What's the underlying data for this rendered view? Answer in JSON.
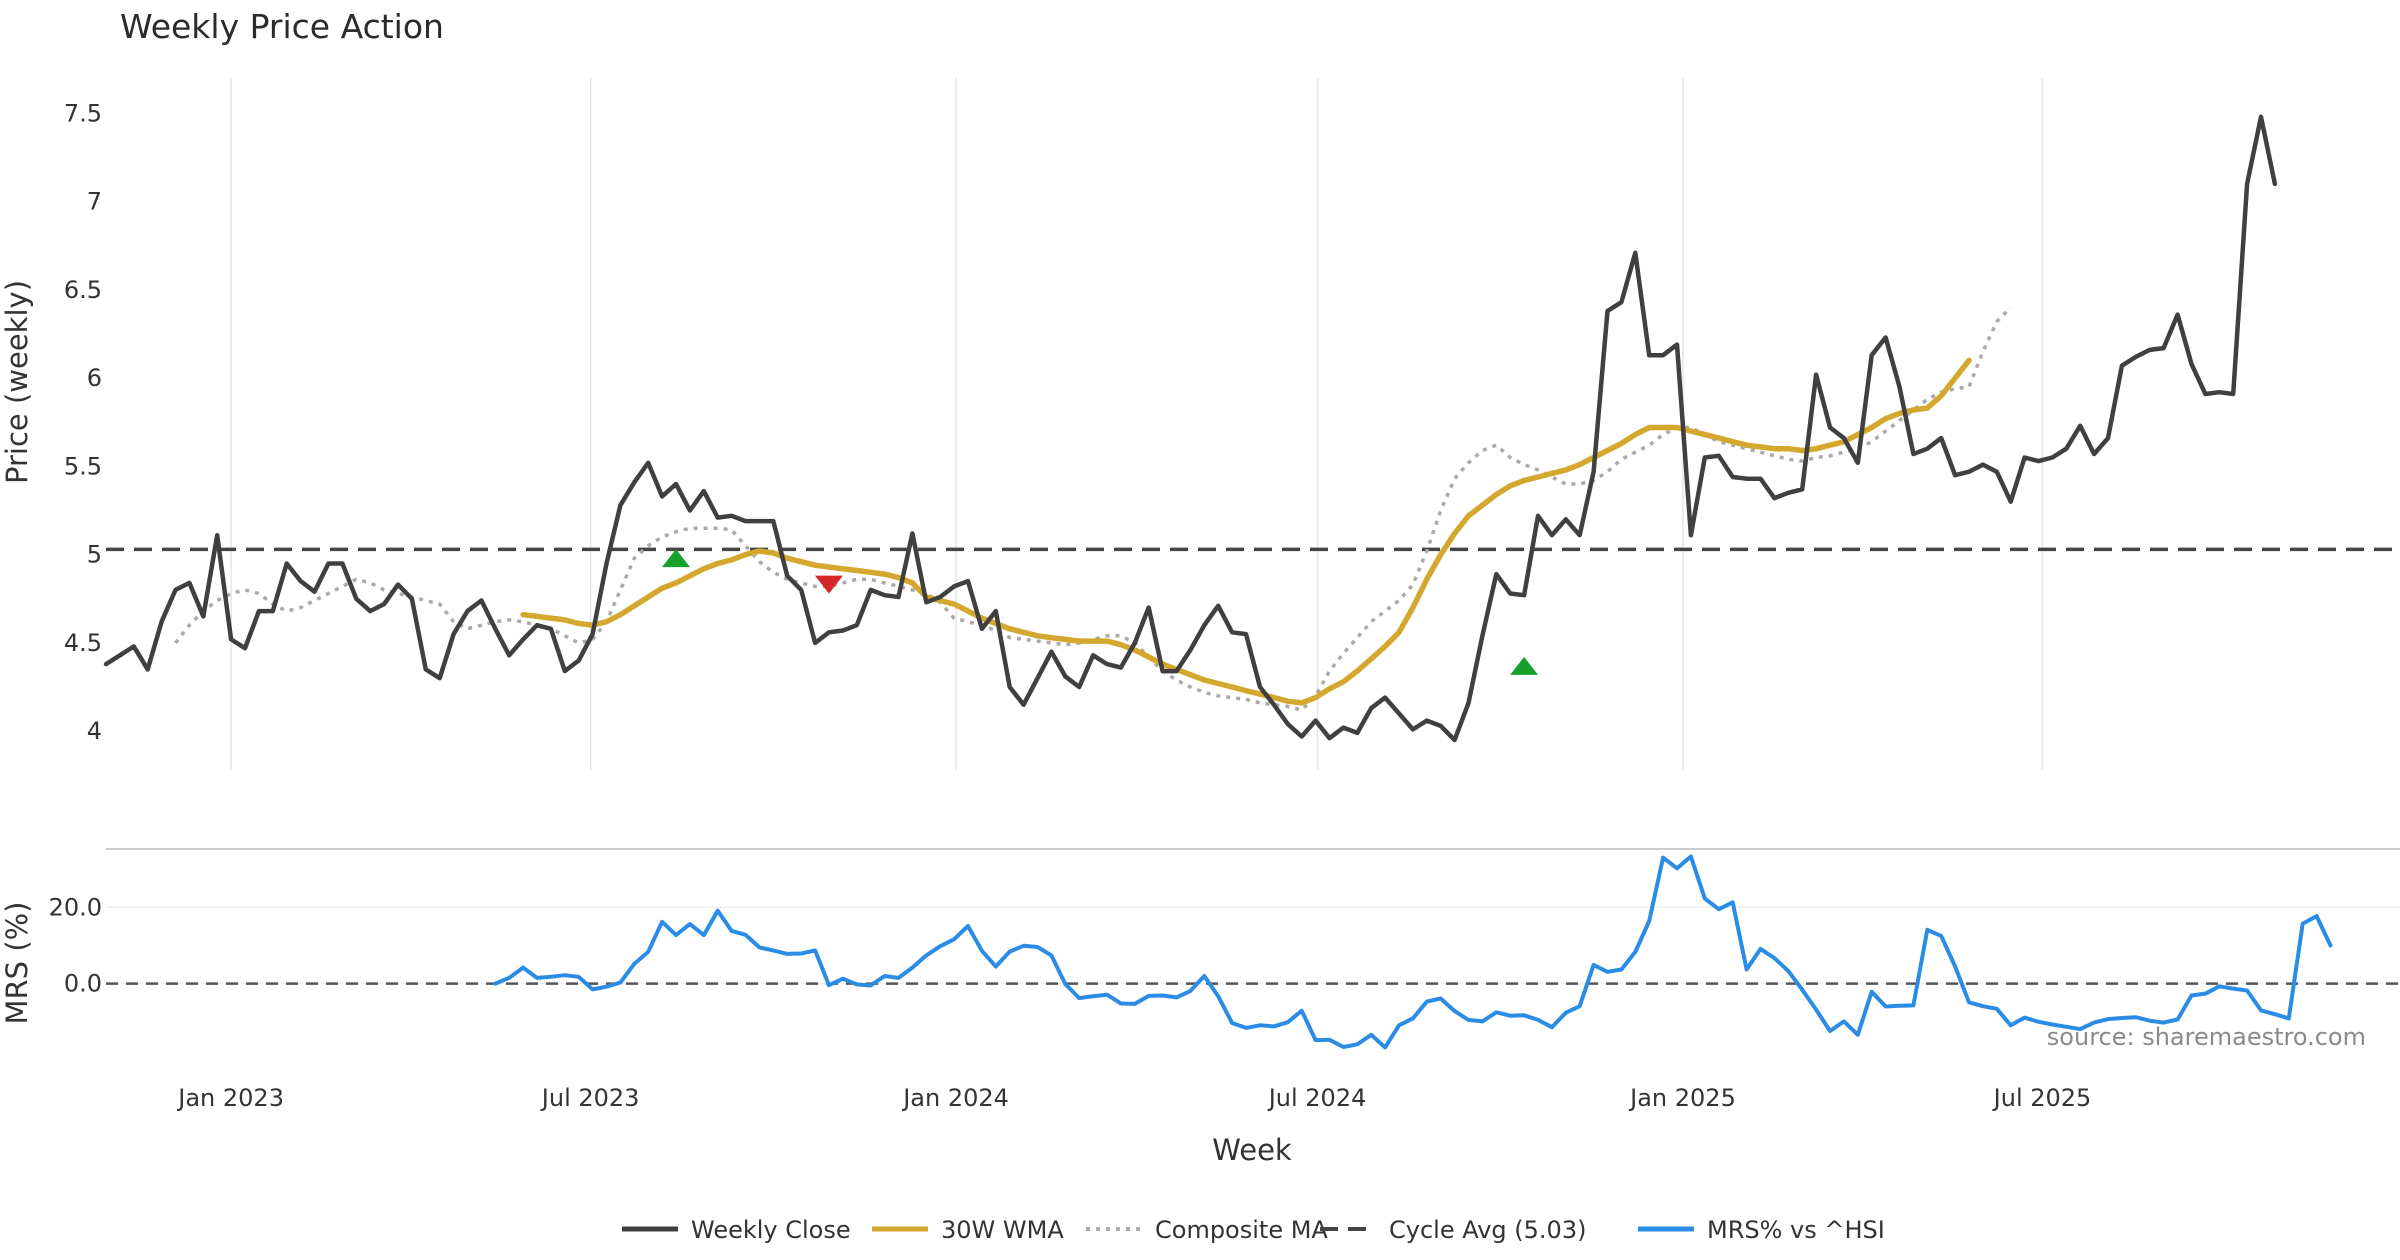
{
  "chart_data": [
    {
      "type": "line",
      "title": "Weekly Price Action",
      "ylabel": "Price (weekly)",
      "xlabel": "Week",
      "ylim": [
        3.78,
        7.7
      ],
      "yticks": [
        4,
        4.5,
        5,
        5.5,
        6,
        6.5,
        7,
        7.5
      ],
      "ytick_labels": [
        "4",
        "4.5",
        "5",
        "5.5",
        "6",
        "6.5",
        "7",
        "7.5"
      ],
      "x_start": "2022-10-30",
      "x_end": "2025-12-28",
      "xticks": [
        "2023-01-01",
        "2023-07-01",
        "2024-01-01",
        "2024-07-01",
        "2025-01-01",
        "2025-07-01"
      ],
      "xtick_labels": [
        "Jan 2023",
        "Jul 2023",
        "Jan 2024",
        "Jul 2024",
        "Jan 2025",
        "Jul 2025"
      ],
      "vertical_grid": true,
      "reference_line": {
        "name": "Cycle Avg (5.03)",
        "value": 5.03,
        "color": "#444444",
        "style": "dashed"
      },
      "series": [
        {
          "name": "Weekly Close",
          "color": "#404040",
          "style": "solid",
          "x_start": "2022-10-30",
          "step_days": 7,
          "values": [
            4.38,
            4.43,
            4.48,
            4.35,
            4.62,
            4.8,
            4.84,
            4.65,
            5.11,
            4.52,
            4.47,
            4.68,
            4.68,
            4.95,
            4.85,
            4.79,
            4.95,
            4.95,
            4.75,
            4.68,
            4.72,
            4.83,
            4.75,
            4.35,
            4.3,
            4.55,
            4.68,
            4.74,
            4.58,
            4.43,
            4.52,
            4.6,
            4.58,
            4.34,
            4.4,
            4.55,
            4.95,
            5.28,
            5.41,
            5.52,
            5.33,
            5.4,
            5.25,
            5.36,
            5.21,
            5.22,
            5.19,
            5.19,
            5.19,
            4.88,
            4.8,
            4.5,
            4.56,
            4.57,
            4.6,
            4.8,
            4.77,
            4.76,
            5.12,
            4.73,
            4.76,
            4.82,
            4.85,
            4.58,
            4.68,
            4.25,
            4.15,
            4.3,
            4.45,
            4.31,
            4.25,
            4.43,
            4.38,
            4.36,
            4.5,
            4.7,
            4.34,
            4.34,
            4.46,
            4.6,
            4.71,
            4.56,
            4.55,
            4.25,
            4.15,
            4.04,
            3.97,
            4.06,
            3.96,
            4.02,
            3.99,
            4.13,
            4.19,
            4.1,
            4.01,
            4.06,
            4.03,
            3.95,
            4.16,
            4.54,
            4.89,
            4.78,
            4.77,
            5.22,
            5.11,
            5.2,
            5.11,
            5.47,
            6.38,
            6.43,
            6.71,
            6.13,
            6.13,
            6.19,
            5.11,
            5.55,
            5.56,
            5.44,
            5.43,
            5.43,
            5.32,
            5.35,
            5.37,
            6.02,
            5.72,
            5.66,
            5.52,
            6.13,
            6.23,
            5.95,
            5.57,
            5.6,
            5.66,
            5.45,
            5.47,
            5.51,
            5.47,
            5.3,
            5.55,
            5.53,
            5.55,
            5.6,
            5.73,
            5.57,
            5.66,
            6.07,
            6.12,
            6.16,
            6.17,
            6.36,
            6.08,
            5.91,
            5.92,
            5.91,
            7.1,
            7.48,
            7.1
          ]
        },
        {
          "name": "30W WMA",
          "color": "#d4a82f",
          "style": "solid",
          "x_start": "2023-05-28",
          "step_days": 7,
          "values": [
            4.66,
            4.65,
            4.64,
            4.63,
            4.61,
            4.6,
            4.62,
            4.66,
            4.71,
            4.76,
            4.81,
            4.84,
            4.88,
            4.92,
            4.95,
            4.97,
            5.0,
            5.02,
            5.01,
            4.98,
            4.96,
            4.94,
            4.93,
            4.92,
            4.91,
            4.9,
            4.89,
            4.87,
            4.84,
            4.76,
            4.74,
            4.72,
            4.68,
            4.64,
            4.61,
            4.58,
            4.56,
            4.54,
            4.53,
            4.52,
            4.51,
            4.51,
            4.51,
            4.49,
            4.46,
            4.42,
            4.38,
            4.35,
            4.32,
            4.29,
            4.27,
            4.25,
            4.23,
            4.21,
            4.19,
            4.17,
            4.16,
            4.19,
            4.24,
            4.28,
            4.34,
            4.41,
            4.48,
            4.56,
            4.7,
            4.86,
            5.0,
            5.12,
            5.22,
            5.28,
            5.34,
            5.39,
            5.42,
            5.44,
            5.46,
            5.48,
            5.51,
            5.55,
            5.59,
            5.63,
            5.68,
            5.72,
            5.72,
            5.72,
            5.7,
            5.68,
            5.66,
            5.64,
            5.62,
            5.61,
            5.6,
            5.6,
            5.59,
            5.6,
            5.62,
            5.64,
            5.68,
            5.72,
            5.77,
            5.8,
            5.82,
            5.83,
            5.9,
            6.0,
            6.1
          ]
        },
        {
          "name": "Composite MA",
          "color": "#aaaaaa",
          "style": "dotted",
          "x_start": "2022-12-04",
          "step_days": 7,
          "values": [
            4.5,
            4.6,
            4.68,
            4.74,
            4.78,
            4.8,
            4.78,
            4.72,
            4.68,
            4.7,
            4.74,
            4.78,
            4.82,
            4.86,
            4.84,
            4.8,
            4.78,
            4.76,
            4.74,
            4.72,
            4.62,
            4.58,
            4.6,
            4.62,
            4.63,
            4.62,
            4.6,
            4.58,
            4.54,
            4.5,
            4.52,
            4.62,
            4.8,
            4.98,
            5.05,
            5.1,
            5.13,
            5.15,
            5.15,
            5.15,
            5.14,
            5.05,
            4.96,
            4.9,
            4.86,
            4.84,
            4.82,
            4.82,
            4.84,
            4.86,
            4.86,
            4.84,
            4.82,
            4.8,
            4.78,
            4.73,
            4.64,
            4.62,
            4.6,
            4.57,
            4.53,
            4.52,
            4.51,
            4.5,
            4.49,
            4.5,
            4.52,
            4.54,
            4.54,
            4.5,
            4.42,
            4.34,
            4.29,
            4.25,
            4.22,
            4.2,
            4.19,
            4.18,
            4.16,
            4.15,
            4.14,
            4.12,
            4.2,
            4.34,
            4.44,
            4.53,
            4.62,
            4.68,
            4.74,
            4.83,
            5.02,
            5.25,
            5.43,
            5.52,
            5.59,
            5.62,
            5.55,
            5.51,
            5.48,
            5.44,
            5.4,
            5.4,
            5.42,
            5.47,
            5.54,
            5.58,
            5.62,
            5.68,
            5.72,
            5.72,
            5.68,
            5.64,
            5.62,
            5.6,
            5.58,
            5.56,
            5.54,
            5.53,
            5.55,
            5.56,
            5.58,
            5.6,
            5.64,
            5.7,
            5.76,
            5.82,
            5.88,
            5.92,
            5.94,
            5.95,
            6.15,
            6.32,
            6.4
          ]
        }
      ],
      "markers": [
        {
          "type": "buy",
          "date": "2023-08-13",
          "value": 4.98,
          "color": "#17a02b"
        },
        {
          "type": "sell",
          "date": "2023-10-29",
          "value": 4.83,
          "color": "#d62728"
        },
        {
          "type": "buy",
          "date": "2024-10-13",
          "value": 4.37,
          "color": "#17a02b"
        }
      ]
    },
    {
      "type": "line",
      "ylabel": "MRS (%)",
      "ylim": [
        -20,
        35
      ],
      "yticks": [
        0,
        20
      ],
      "ytick_labels": [
        "0.0",
        "20.0"
      ],
      "zero_line": {
        "value": 0,
        "color": "#555555",
        "style": "dashed"
      },
      "series": [
        {
          "name": "MRS% vs ^HSI",
          "color": "#2b8ce6",
          "style": "solid",
          "x_start": "2023-05-14",
          "step_days": 7,
          "values": [
            0,
            1.5,
            4.2,
            1.5,
            1.8,
            2.2,
            1.8,
            -1.5,
            -0.8,
            0.3,
            5.2,
            8.3,
            16.2,
            12.7,
            15.6,
            12.7,
            19.1,
            13.8,
            12.8,
            9.5,
            8.7,
            7.8,
            7.9,
            8.7,
            -0.4,
            1.3,
            -0.2,
            -0.5,
            2.0,
            1.5,
            4.2,
            7.4,
            9.8,
            11.6,
            15.1,
            8.6,
            4.5,
            8.4,
            9.9,
            9.6,
            7.4,
            -0.1,
            -3.8,
            -3.3,
            -2.9,
            -5.2,
            -5.3,
            -3.2,
            -3.1,
            -3.6,
            -1.9,
            2.0,
            -3.3,
            -10.3,
            -11.6,
            -10.9,
            -11.2,
            -10.1,
            -7.1,
            -14.8,
            -14.7,
            -16.6,
            -15.9,
            -13.4,
            -16.7,
            -10.9,
            -9.1,
            -4.7,
            -3.9,
            -7.2,
            -9.5,
            -9.9,
            -7.5,
            -8.4,
            -8.3,
            -9.5,
            -11.4,
            -7.6,
            -5.9,
            4.9,
            3.1,
            3.7,
            8.3,
            16.4,
            33.0,
            30.2,
            33.3,
            22.3,
            19.5,
            21.3,
            3.7,
            9.1,
            6.7,
            3.3,
            -1.6,
            -6.8,
            -12.4,
            -9.9,
            -13.4,
            -2.1,
            -6.0,
            -5.8,
            -5.7,
            14.1,
            12.5,
            4.5,
            -4.9,
            -5.9,
            -6.6,
            -10.9,
            -8.9,
            -10.0,
            -10.7,
            -11.3,
            -11.9,
            -10.2,
            -9.3,
            -9.0,
            -8.8,
            -9.7,
            -10.2,
            -9.4,
            -3.1,
            -2.6,
            -0.7,
            -1.3,
            -1.8,
            -7.0,
            -8.0,
            -9.1,
            15.7,
            17.7,
            10.0
          ]
        }
      ]
    }
  ],
  "legend": [
    {
      "label": "Weekly Close",
      "color": "#404040",
      "style": "solid"
    },
    {
      "label": "30W WMA",
      "color": "#d4a82f",
      "style": "solid"
    },
    {
      "label": "Composite MA",
      "color": "#aaaaaa",
      "style": "dotted"
    },
    {
      "label": "Cycle Avg (5.03)",
      "color": "#444444",
      "style": "dashed"
    },
    {
      "label": "MRS% vs ^HSI",
      "color": "#2b8ce6",
      "style": "solid"
    }
  ],
  "source": "source: sharemaestro.com"
}
